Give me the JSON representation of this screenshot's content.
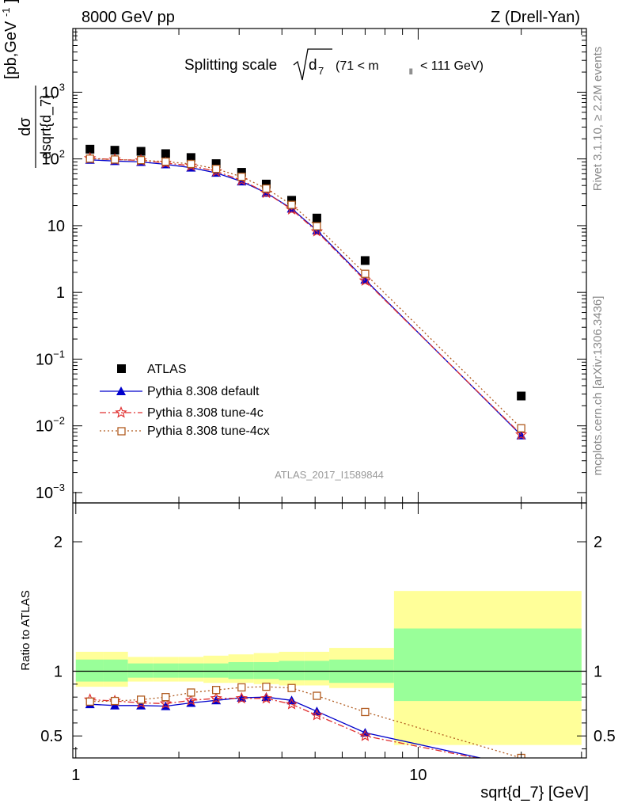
{
  "header": {
    "left": "8000 GeV pp",
    "right": "Z (Drell-Yan)"
  },
  "side_labels": {
    "rivet": "Rivet 3.1.10, ≥ 2.2M events",
    "mcplots": "mcplots.cern.ch [arXiv:1306.3436]"
  },
  "chart_data": [
    {
      "type": "scatter",
      "panel": "main",
      "title": "Splitting scale",
      "title_symbol": "d",
      "title_symbol_sub": "7",
      "title_range_pre": "(71 < m",
      "title_range_sub": "ll",
      "title_range_post": "< 111 GeV)",
      "analysis_label": "ATLAS_2017_I1589844",
      "ylabel_num": "dσ",
      "ylabel_den": "dsqrt{d_7}",
      "yunit": "[pb,GeV",
      "yunit_sup": "-1",
      "yunit_close": "]",
      "xscale": "log",
      "yscale": "log",
      "xlim": [
        0.98,
        31
      ],
      "ylim": [
        0.0007,
        9000
      ],
      "x_ticks": [
        {
          "value": 1,
          "label": "1"
        },
        {
          "value": 10,
          "label": "10"
        }
      ],
      "y_ticks": [
        {
          "value": 0.001,
          "label": "10",
          "sup": "−3"
        },
        {
          "value": 0.01,
          "label": "10",
          "sup": "−2"
        },
        {
          "value": 0.1,
          "label": "10",
          "sup": "−1"
        },
        {
          "value": 1,
          "label": "1",
          "sup": ""
        },
        {
          "value": 10,
          "label": "10",
          "sup": ""
        },
        {
          "value": 100,
          "label": "10",
          "sup": "2"
        },
        {
          "value": 1000,
          "label": "10",
          "sup": "3"
        }
      ],
      "legend_position": "bottom-left",
      "x": [
        1.1,
        1.3,
        1.55,
        1.83,
        2.17,
        2.57,
        3.05,
        3.6,
        4.27,
        5.06,
        7.0,
        20.0
      ],
      "series": [
        {
          "name": "ATLAS",
          "color": "#000000",
          "marker": "square",
          "line": "none",
          "values": [
            140,
            135,
            130,
            120,
            105,
            85,
            63,
            42,
            24,
            13,
            3.0,
            0.028
          ]
        },
        {
          "name": "Pythia 8.308 default",
          "color": "#0000cc",
          "marker": "triangle",
          "line": "solid",
          "values": [
            97,
            93,
            90,
            83,
            74,
            62,
            46,
            31,
            18,
            8.5,
            1.55,
            0.0072
          ]
        },
        {
          "name": "Pythia 8.308 tune-4c",
          "color": "#e03030",
          "marker": "star",
          "line": "dashdot",
          "values": [
            102,
            98,
            95,
            87,
            79,
            65,
            48,
            31,
            17.5,
            8.2,
            1.5,
            0.0074
          ]
        },
        {
          "name": "Pythia 8.308 tune-4cx",
          "color": "#b05a1e",
          "marker": "open-square",
          "line": "dotted",
          "values": [
            101,
            98,
            96,
            91,
            84,
            71,
            54,
            36,
            20.5,
            9.8,
            1.9,
            0.0092
          ]
        }
      ]
    },
    {
      "type": "line",
      "panel": "ratio",
      "ylabel": "Ratio to ATLAS",
      "xlabel": "sqrt{d_7} [GeV]",
      "xscale": "log",
      "xlim": [
        0.98,
        31
      ],
      "ylim": [
        0.33,
        2.3
      ],
      "y_ticks": [
        {
          "value": 0.5,
          "label": "0.5"
        },
        {
          "value": 1,
          "label": "1"
        },
        {
          "value": 2,
          "label": "2"
        }
      ],
      "x_ticks": [
        {
          "value": 1,
          "label": "1"
        },
        {
          "value": 10,
          "label": "10"
        }
      ],
      "bin_edges": [
        1.0,
        1.2,
        1.42,
        1.68,
        1.99,
        2.36,
        2.79,
        3.31,
        3.92,
        4.64,
        5.5,
        8.5,
        30.0
      ],
      "green_band": [
        [
          0.92,
          1.09
        ],
        [
          0.92,
          1.09
        ],
        [
          0.95,
          1.06
        ],
        [
          0.95,
          1.06
        ],
        [
          0.95,
          1.06
        ],
        [
          0.95,
          1.06
        ],
        [
          0.94,
          1.07
        ],
        [
          0.94,
          1.07
        ],
        [
          0.93,
          1.08
        ],
        [
          0.93,
          1.08
        ],
        [
          0.91,
          1.09
        ],
        [
          0.77,
          1.33
        ]
      ],
      "yellow_band": [
        [
          0.88,
          1.15
        ],
        [
          0.88,
          1.15
        ],
        [
          0.92,
          1.11
        ],
        [
          0.92,
          1.11
        ],
        [
          0.92,
          1.11
        ],
        [
          0.91,
          1.12
        ],
        [
          0.91,
          1.13
        ],
        [
          0.9,
          1.14
        ],
        [
          0.89,
          1.15
        ],
        [
          0.89,
          1.15
        ],
        [
          0.87,
          1.18
        ],
        [
          0.43,
          1.62
        ]
      ],
      "x": [
        1.1,
        1.3,
        1.55,
        1.83,
        2.17,
        2.57,
        3.05,
        3.6,
        4.27,
        5.06,
        7.0,
        20.0
      ],
      "series": [
        {
          "name": "Pythia 8.308 default",
          "color": "#0000cc",
          "marker": "triangle",
          "line": "solid",
          "values": [
            0.745,
            0.735,
            0.735,
            0.73,
            0.755,
            0.775,
            0.795,
            0.8,
            0.775,
            0.69,
            0.525,
            0.26
          ]
        },
        {
          "name": "Pythia 8.308 tune-4c",
          "color": "#e03030",
          "marker": "star",
          "line": "dashdot",
          "values": [
            0.78,
            0.77,
            0.755,
            0.75,
            0.775,
            0.79,
            0.79,
            0.79,
            0.745,
            0.66,
            0.5,
            0.26
          ]
        },
        {
          "name": "Pythia 8.308 tune-4cx",
          "color": "#b05a1e",
          "marker": "open-square",
          "line": "dotted",
          "values": [
            0.765,
            0.77,
            0.78,
            0.8,
            0.835,
            0.855,
            0.875,
            0.88,
            0.87,
            0.81,
            0.685,
            0.33
          ]
        }
      ]
    }
  ]
}
